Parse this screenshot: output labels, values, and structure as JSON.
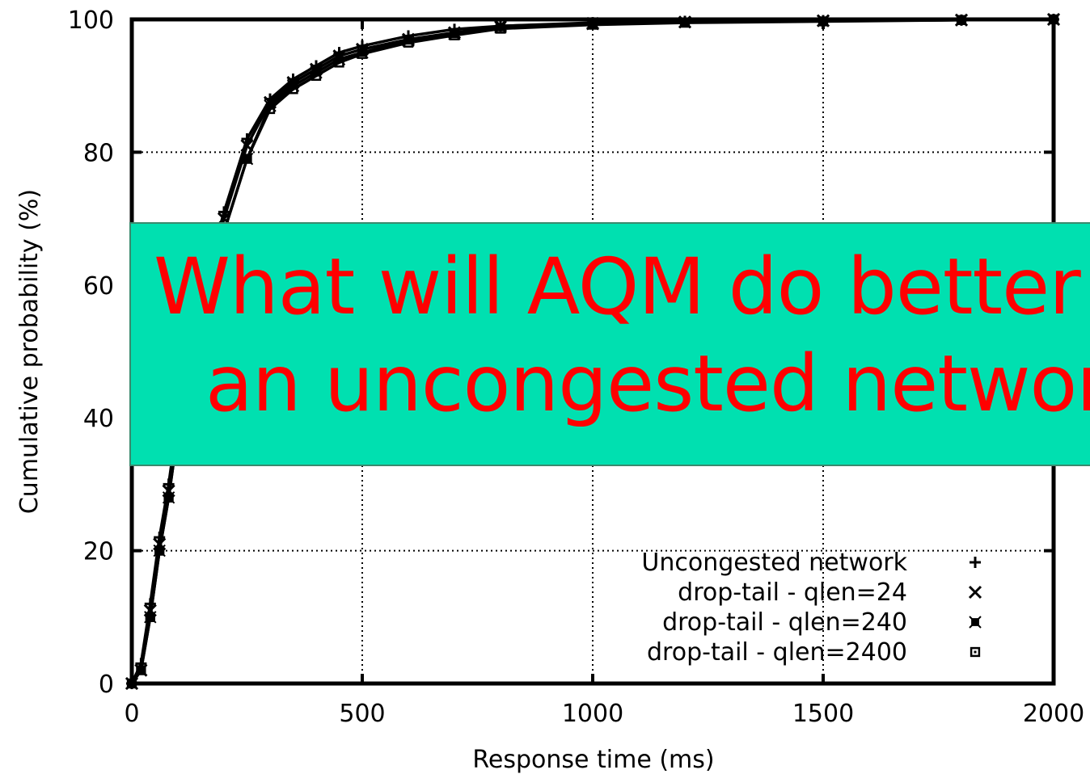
{
  "chart_data": {
    "type": "line",
    "title": "",
    "xlabel": "Response time (ms)",
    "ylabel": "Cumulative probability (%)",
    "xlim": [
      0,
      2000
    ],
    "ylim": [
      0,
      100
    ],
    "x_ticks": [
      "0",
      "500",
      "1000",
      "1500",
      "2000"
    ],
    "y_ticks": [
      "0",
      "20",
      "40",
      "60",
      "80",
      "100"
    ],
    "grid": true,
    "legend_position": "bottom-right",
    "series": [
      {
        "name": "Uncongested network",
        "marker": "+",
        "x": [
          0,
          20,
          40,
          60,
          80,
          100,
          150,
          200,
          250,
          300,
          350,
          400,
          450,
          500,
          600,
          700,
          800,
          1000,
          1200,
          1500,
          1800,
          2000
        ],
        "y": [
          0,
          3,
          12,
          22,
          30,
          40,
          58,
          71,
          82,
          88,
          91,
          93,
          95,
          96,
          97.5,
          98.5,
          99,
          99.5,
          99.7,
          99.8,
          99.9,
          100
        ]
      },
      {
        "name": "drop-tail - qlen=24",
        "marker": "x",
        "x": [
          0,
          20,
          40,
          60,
          80,
          100,
          150,
          200,
          250,
          300,
          350,
          400,
          450,
          500,
          600,
          700,
          800,
          1000,
          1200,
          1500,
          1800,
          2000
        ],
        "y": [
          0,
          2,
          11,
          21,
          29,
          39,
          57,
          70,
          81,
          87.5,
          90.5,
          92.5,
          94.5,
          95.5,
          97,
          98,
          99,
          99.4,
          99.6,
          99.8,
          99.9,
          100
        ]
      },
      {
        "name": "drop-tail - qlen=240",
        "marker": "filled-square-x",
        "x": [
          0,
          20,
          40,
          60,
          80,
          100,
          150,
          200,
          250,
          300,
          350,
          400,
          450,
          500,
          600,
          700,
          800,
          1000,
          1200,
          1500,
          1800,
          2000
        ],
        "y": [
          0,
          2,
          10,
          20,
          28,
          38,
          55,
          68,
          79,
          87,
          90,
          92,
          94,
          95,
          96.8,
          97.8,
          98.8,
          99.3,
          99.6,
          99.8,
          99.9,
          100
        ]
      },
      {
        "name": "drop-tail - qlen=2400",
        "marker": "square-dot",
        "x": [
          0,
          20,
          40,
          60,
          80,
          100,
          150,
          200,
          250,
          300,
          350,
          400,
          450,
          500,
          600,
          700,
          800,
          1000,
          1200,
          1500,
          1800,
          2000
        ],
        "y": [
          0,
          2,
          10,
          20,
          28,
          38,
          55,
          68,
          79,
          86.5,
          89.5,
          91.5,
          93.5,
          94.8,
          96.5,
          97.6,
          98.6,
          99.2,
          99.5,
          99.7,
          99.9,
          100
        ]
      }
    ]
  },
  "overlay": {
    "line1": "What will AQM do better",
    "line2": "an uncongested networ",
    "background": "#00e0b0",
    "text_color": "#ff0000"
  }
}
